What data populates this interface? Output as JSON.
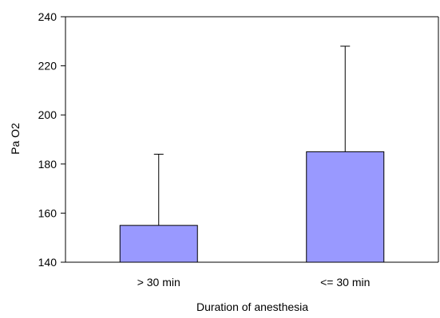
{
  "chart_data": {
    "type": "bar",
    "title": "",
    "xlabel": "Duration of anesthesia",
    "ylabel": "Pa O2",
    "categories": [
      "> 30 min",
      "<= 30 min"
    ],
    "values": [
      155,
      185
    ],
    "error_upper": [
      184,
      228
    ],
    "ylim": [
      140,
      240
    ],
    "yticks": [
      140,
      160,
      180,
      200,
      220,
      240
    ],
    "grid": false,
    "legend": "none",
    "bar_color": "#9999ff",
    "bar_edge_color": "#000000"
  }
}
